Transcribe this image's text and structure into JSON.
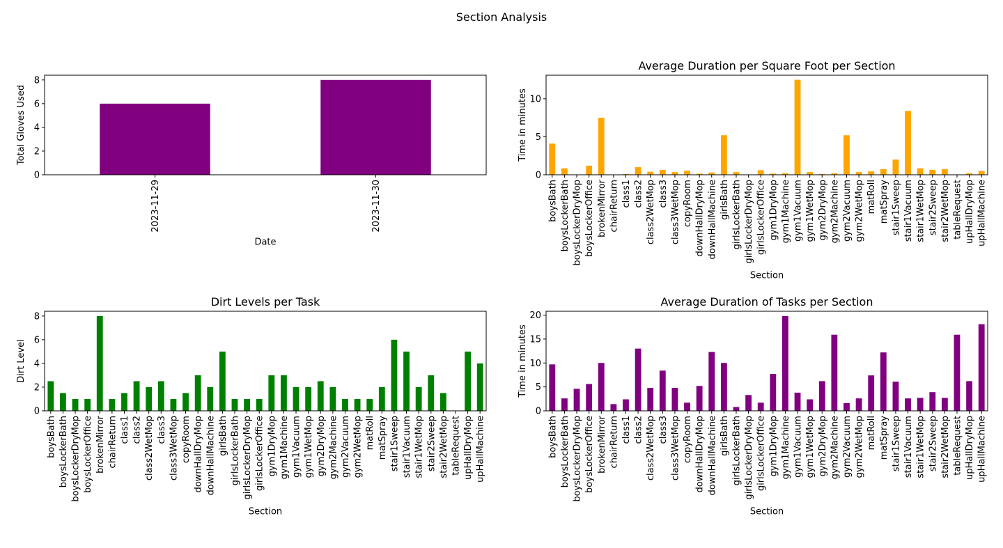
{
  "figure": {
    "suptitle": "Section Analysis"
  },
  "chart_data": [
    {
      "id": "gloves",
      "type": "bar",
      "title": "",
      "xlabel": "Date",
      "ylabel": "Total Gloves Used",
      "categories": [
        "2023-11-29",
        "2023-11-30"
      ],
      "values": [
        6,
        8
      ],
      "ylim": [
        0,
        8.4
      ],
      "yticks": [
        0,
        2,
        4,
        6,
        8
      ],
      "color": "#800080",
      "grid": false,
      "legend": "none"
    },
    {
      "id": "avg-duration-per-sqft",
      "type": "bar",
      "title": "Average Duration per Square Foot per Section",
      "xlabel": "Section",
      "ylabel": "Time in minutes",
      "categories": [
        "boysBath",
        "boysLockerBath",
        "boysLockerDryMop",
        "boysLockerOffice",
        "brokenMirror",
        "chairReturn",
        "class1",
        "class2",
        "class2WetMop",
        "class3",
        "class3WetMop",
        "copyRoom",
        "downHallDryMop",
        "downHallMachine",
        "girlsBath",
        "girlsLockerBath",
        "girlsLockerDryMop",
        "girlsLockerOffice",
        "gym1DryMop",
        "gym1Machine",
        "gym1Vacuum",
        "gym1WetMop",
        "gym2DryMop",
        "gym2Machine",
        "gym2Vacuum",
        "gym2WetMop",
        "matRoll",
        "matSpray",
        "stair1Sweep",
        "stair1Vacuum",
        "stair1WetMop",
        "stair2Sweep",
        "stair2WetMop",
        "tableRequest",
        "upHallDryMop",
        "upHallMachine"
      ],
      "values": [
        4.1,
        0.85,
        0.0,
        1.2,
        7.5,
        0.0,
        0.1,
        1.0,
        0.4,
        0.65,
        0.35,
        0.55,
        0.15,
        0.3,
        5.2,
        0.35,
        0.0,
        0.6,
        0.15,
        0.2,
        12.5,
        0.35,
        0.1,
        0.2,
        5.2,
        0.35,
        0.45,
        0.75,
        2.0,
        8.4,
        0.85,
        0.65,
        0.75,
        0.0,
        0.2,
        0.5
      ],
      "ylim": [
        0,
        13.1
      ],
      "yticks": [
        0,
        5,
        10
      ],
      "color": "#ffa500",
      "grid": false,
      "legend": "none"
    },
    {
      "id": "dirt-levels",
      "type": "bar",
      "title": "Dirt Levels per Task",
      "xlabel": "Section",
      "ylabel": "Dirt Level",
      "categories": [
        "boysBath",
        "boysLockerBath",
        "boysLockerDryMop",
        "boysLockerOffice",
        "brokenMirror",
        "chairReturn",
        "class1",
        "class2",
        "class2WetMop",
        "class3",
        "class3WetMop",
        "copyRoom",
        "downHallDryMop",
        "downHallMachine",
        "girlsBath",
        "girlsLockerBath",
        "girlsLockerDryMop",
        "girlsLockerOffice",
        "gym1DryMop",
        "gym1Machine",
        "gym1Vacuum",
        "gym1WetMop",
        "gym2DryMop",
        "gym2Machine",
        "gym2Vacuum",
        "gym2WetMop",
        "matRoll",
        "matSpray",
        "stair1Sweep",
        "stair1Vacuum",
        "stair1WetMop",
        "stair2Sweep",
        "stair2WetMop",
        "tableRequest",
        "upHallDryMop",
        "upHallMachine"
      ],
      "values": [
        2.5,
        1.5,
        1,
        1,
        8,
        1,
        1.5,
        2.5,
        2,
        2.5,
        1,
        1.5,
        3,
        2,
        5,
        1,
        1,
        1,
        3,
        3,
        2,
        2,
        2.5,
        2,
        1,
        1,
        1,
        2,
        6,
        5,
        2,
        3,
        1.5,
        0,
        5,
        4
      ],
      "ylim": [
        0,
        8.4
      ],
      "yticks": [
        0,
        2,
        4,
        6,
        8
      ],
      "color": "#008000",
      "grid": false,
      "legend": "none"
    },
    {
      "id": "avg-duration-tasks",
      "type": "bar",
      "title": "Average Duration of Tasks per Section",
      "xlabel": "Section",
      "ylabel": "Time in minutes",
      "categories": [
        "boysBath",
        "boysLockerBath",
        "boysLockerDryMop",
        "boysLockerOffice",
        "brokenMirror",
        "chairReturn",
        "class1",
        "class2",
        "class2WetMop",
        "class3",
        "class3WetMop",
        "copyRoom",
        "downHallDryMop",
        "downHallMachine",
        "girlsBath",
        "girlsLockerBath",
        "girlsLockerDryMop",
        "girlsLockerOffice",
        "gym1DryMop",
        "gym1Machine",
        "gym1Vacuum",
        "gym1WetMop",
        "gym2DryMop",
        "gym2Machine",
        "gym2Vacuum",
        "gym2WetMop",
        "matRoll",
        "matSpray",
        "stair1Sweep",
        "stair1Vacuum",
        "stair1WetMop",
        "stair2Sweep",
        "stair2WetMop",
        "tableRequest",
        "upHallDryMop",
        "upHallMachine"
      ],
      "values": [
        9.7,
        2.6,
        4.6,
        5.6,
        10.0,
        1.4,
        2.4,
        13.0,
        4.8,
        8.4,
        4.8,
        1.7,
        5.2,
        12.3,
        10.0,
        0.8,
        3.3,
        1.7,
        7.7,
        19.8,
        3.8,
        2.4,
        6.2,
        15.9,
        1.6,
        2.6,
        7.4,
        12.2,
        6.1,
        2.6,
        2.7,
        3.9,
        2.7,
        15.9,
        6.2,
        18.1
      ],
      "ylim": [
        0,
        20.8
      ],
      "yticks": [
        0,
        5,
        10,
        15,
        20
      ],
      "color": "#800080",
      "grid": false,
      "legend": "none"
    }
  ]
}
